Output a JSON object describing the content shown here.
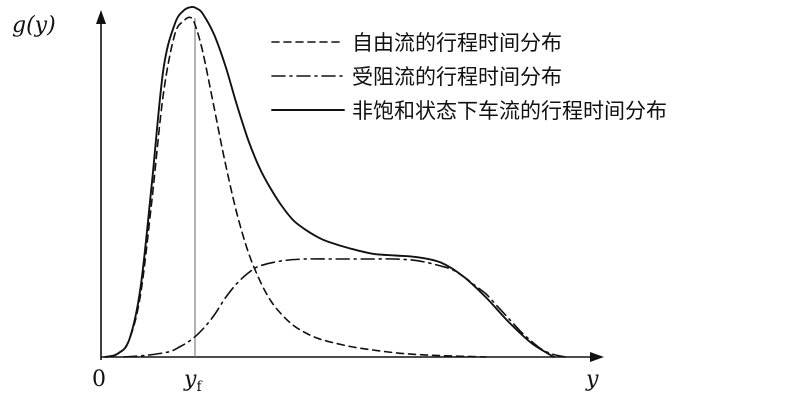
{
  "chart_data": {
    "type": "line",
    "ylabel": "g(y)",
    "xlabel": "y",
    "origin_label": "0",
    "marker": {
      "label": "y",
      "subscript": "f",
      "x": 8.3
    },
    "xlim": [
      0,
      41.5
    ],
    "ylim": [
      0,
      100
    ],
    "grid": false,
    "legend_position": "top-right",
    "series": [
      {
        "name": "自由流的行程时间分布",
        "style": "dashed",
        "color": "#111111",
        "x": [
          0.3,
          1.5,
          2.5,
          3.5,
          4.5,
          5.5,
          6.5,
          7.3,
          7.9,
          8.3,
          9.0,
          10.0,
          11.0,
          12.0,
          13.0,
          14.0,
          15.0,
          16.0,
          17.0,
          18.0,
          19.0,
          20.0,
          22.0,
          24.0,
          26.0,
          28.0,
          30.0,
          32.0,
          34.0
        ],
        "y": [
          0,
          1,
          5,
          18,
          45,
          75,
          92,
          96,
          97,
          95,
          87,
          71,
          55,
          41,
          30,
          22,
          16,
          12,
          9,
          7,
          5.5,
          4.5,
          3,
          2,
          1.2,
          0.7,
          0.4,
          0.2,
          0
        ]
      },
      {
        "name": "受阻流的行程时间分布",
        "style": "dash-dot",
        "color": "#111111",
        "x": [
          2.0,
          4.0,
          6.0,
          7.0,
          8.0,
          9.0,
          10.0,
          11.0,
          12.0,
          13.0,
          14.0,
          16.0,
          18.0,
          20.0,
          22.0,
          24.0,
          26.0,
          28.0,
          30.0,
          31.0,
          32.0,
          33.0,
          34.0,
          35.0,
          36.0,
          37.0,
          38.0,
          39.0,
          40.0,
          41.0
        ],
        "y": [
          0,
          0.5,
          1.5,
          3,
          5,
          8,
          12,
          17,
          21,
          24,
          26,
          27.5,
          28,
          28,
          28,
          28,
          28,
          27.5,
          26,
          25,
          23,
          20.5,
          18,
          14.5,
          11,
          7.5,
          4.5,
          2,
          0.7,
          0
        ]
      },
      {
        "name": "非饱和状态下车流的行程时间分布",
        "style": "solid",
        "color": "#111111",
        "x": [
          0.5,
          1.5,
          2.5,
          3.5,
          4.5,
          5.5,
          6.5,
          7.3,
          8.0,
          8.5,
          9.0,
          10.0,
          11.0,
          12.0,
          13.0,
          14.0,
          15.0,
          16.0,
          17.0,
          18.0,
          19.0,
          20.0,
          22.0,
          24.0,
          26.0,
          28.0,
          30.0,
          32.0,
          34.0,
          36.0,
          38.0,
          40.0
        ],
        "y": [
          0,
          1,
          5,
          20,
          50,
          82,
          95,
          99,
          100,
          99.5,
          98,
          92,
          83,
          72,
          62,
          54,
          48,
          43,
          39,
          36.5,
          34.5,
          33,
          31,
          29.5,
          29,
          28.5,
          27,
          23,
          17,
          10,
          4,
          0
        ]
      }
    ]
  }
}
